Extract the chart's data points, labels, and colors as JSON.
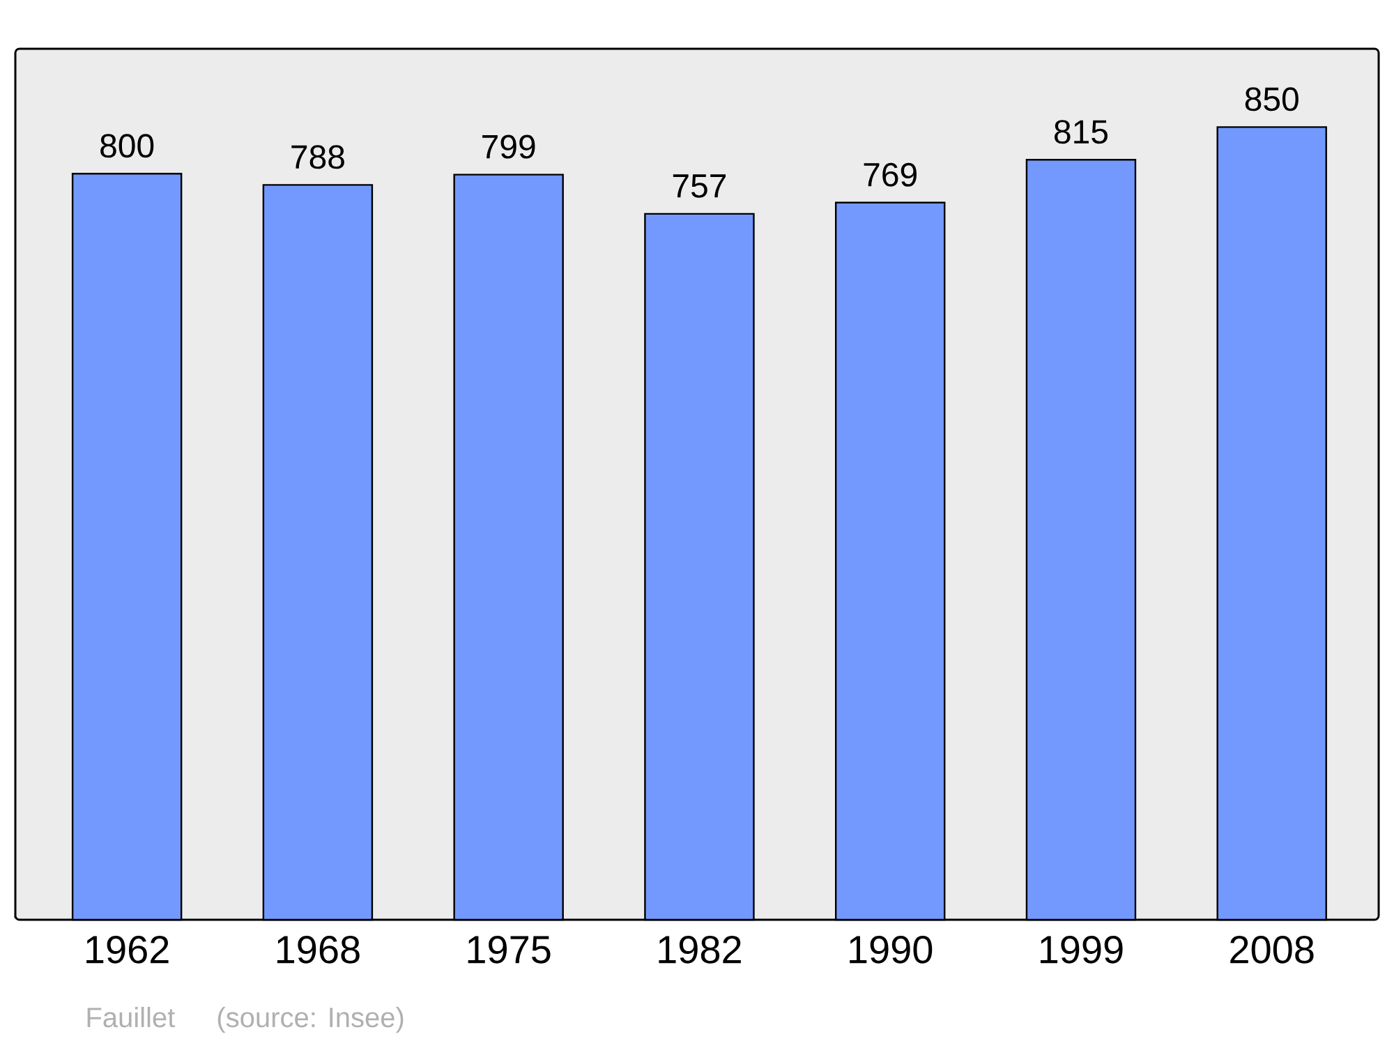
{
  "chart_data": {
    "type": "bar",
    "categories": [
      "1962",
      "1968",
      "1975",
      "1982",
      "1990",
      "1999",
      "2008"
    ],
    "values": [
      800,
      788,
      799,
      757,
      769,
      815,
      850
    ],
    "color": "#7399ff",
    "data_labels": true,
    "ylim": [
      0,
      934
    ],
    "annotations": [
      "Fauillet",
      "(source: Insee)"
    ]
  }
}
